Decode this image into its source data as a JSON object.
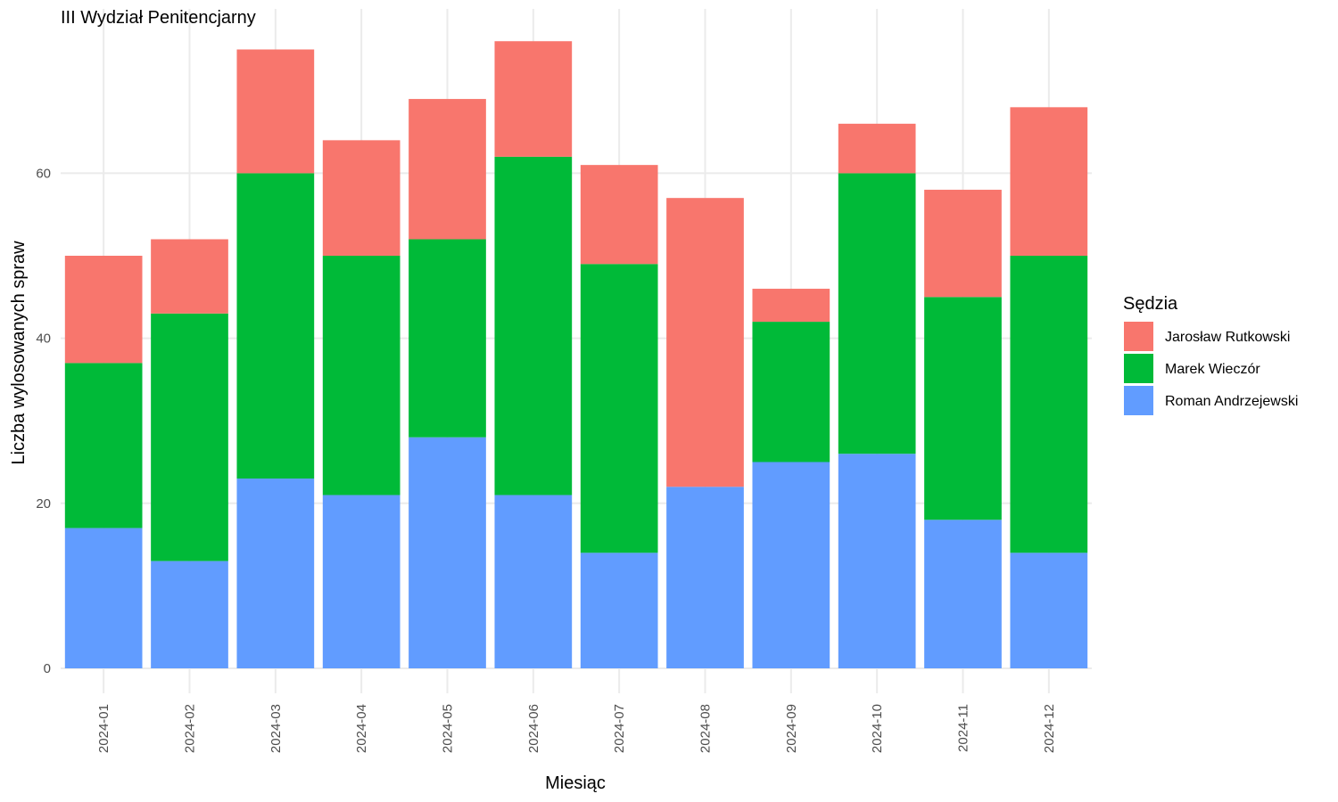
{
  "chart_data": {
    "type": "bar",
    "stacked": true,
    "title": "III Wydział Penitencjarny",
    "xlabel": "Miesiąc",
    "ylabel": "Liczba wylosowanych spraw",
    "categories": [
      "2024-01",
      "2024-02",
      "2024-03",
      "2024-04",
      "2024-05",
      "2024-06",
      "2024-07",
      "2024-08",
      "2024-09",
      "2024-10",
      "2024-11",
      "2024-12"
    ],
    "ylim": [
      0,
      80
    ],
    "yticks": [
      0,
      20,
      40,
      60
    ],
    "grid": true,
    "legend": {
      "title": "Sędzia",
      "position": "right"
    },
    "series": [
      {
        "name": "Roman Andrzejewski",
        "color": "#619CFF",
        "values": [
          17,
          13,
          23,
          21,
          28,
          21,
          14,
          22,
          25,
          26,
          18,
          14
        ]
      },
      {
        "name": "Marek Wieczór",
        "color": "#00BA38",
        "values": [
          20,
          30,
          37,
          29,
          24,
          41,
          35,
          0,
          17,
          34,
          27,
          36
        ]
      },
      {
        "name": "Jarosław Rutkowski",
        "color": "#F8766D",
        "values": [
          13,
          9,
          15,
          14,
          17,
          14,
          12,
          35,
          4,
          6,
          13,
          18
        ]
      }
    ]
  }
}
